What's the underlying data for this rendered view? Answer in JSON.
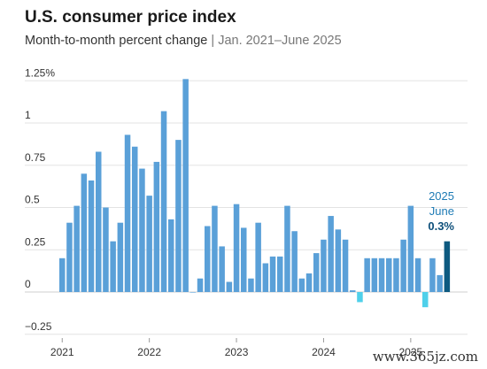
{
  "header": {
    "title": "U.S. consumer price index",
    "subtitle_main": "Month-to-month percent change",
    "subtitle_sep": "|",
    "subtitle_range": "Jan. 2021–June 2025"
  },
  "watermark": "www.365jz.com",
  "colors": {
    "bar": "#5aa0d8",
    "negative_bar": "#4fd0ea",
    "highlight_bar": "#0d5a80",
    "accent_text": "#1e7bb5"
  },
  "chart_data": {
    "type": "bar",
    "x": [
      "2021-01",
      "2021-02",
      "2021-03",
      "2021-04",
      "2021-05",
      "2021-06",
      "2021-07",
      "2021-08",
      "2021-09",
      "2021-10",
      "2021-11",
      "2021-12",
      "2022-01",
      "2022-02",
      "2022-03",
      "2022-04",
      "2022-05",
      "2022-06",
      "2022-07",
      "2022-08",
      "2022-09",
      "2022-10",
      "2022-11",
      "2022-12",
      "2023-01",
      "2023-02",
      "2023-03",
      "2023-04",
      "2023-05",
      "2023-06",
      "2023-07",
      "2023-08",
      "2023-09",
      "2023-10",
      "2023-11",
      "2023-12",
      "2024-01",
      "2024-02",
      "2024-03",
      "2024-04",
      "2024-05",
      "2024-06",
      "2024-07",
      "2024-08",
      "2024-09",
      "2024-10",
      "2024-11",
      "2024-12",
      "2025-01",
      "2025-02",
      "2025-03",
      "2025-04",
      "2025-05",
      "2025-06"
    ],
    "values": [
      0.2,
      0.41,
      0.51,
      0.7,
      0.66,
      0.83,
      0.5,
      0.3,
      0.41,
      0.93,
      0.86,
      0.73,
      0.57,
      0.77,
      1.07,
      0.43,
      0.9,
      1.26,
      0.0,
      0.08,
      0.39,
      0.51,
      0.27,
      0.06,
      0.52,
      0.38,
      0.08,
      0.41,
      0.17,
      0.21,
      0.21,
      0.51,
      0.36,
      0.08,
      0.11,
      0.23,
      0.31,
      0.45,
      0.37,
      0.31,
      0.01,
      -0.06,
      0.2,
      0.2,
      0.2,
      0.2,
      0.2,
      0.31,
      0.51,
      0.2,
      -0.09,
      0.2,
      0.1,
      0.3
    ],
    "highlight_index": 53,
    "yticks": [
      "1.25%",
      "1",
      "0.75",
      "0.5",
      "0.25",
      "0",
      "−0.25"
    ],
    "ytick_values": [
      1.25,
      1,
      0.75,
      0.5,
      0.25,
      0,
      -0.25
    ],
    "xticks": [
      "2021",
      "2022",
      "2023",
      "2024",
      "2025"
    ],
    "ylim": [
      -0.3,
      1.3
    ],
    "annotation": {
      "year": "2025",
      "month": "June",
      "value": "0.3%"
    }
  }
}
